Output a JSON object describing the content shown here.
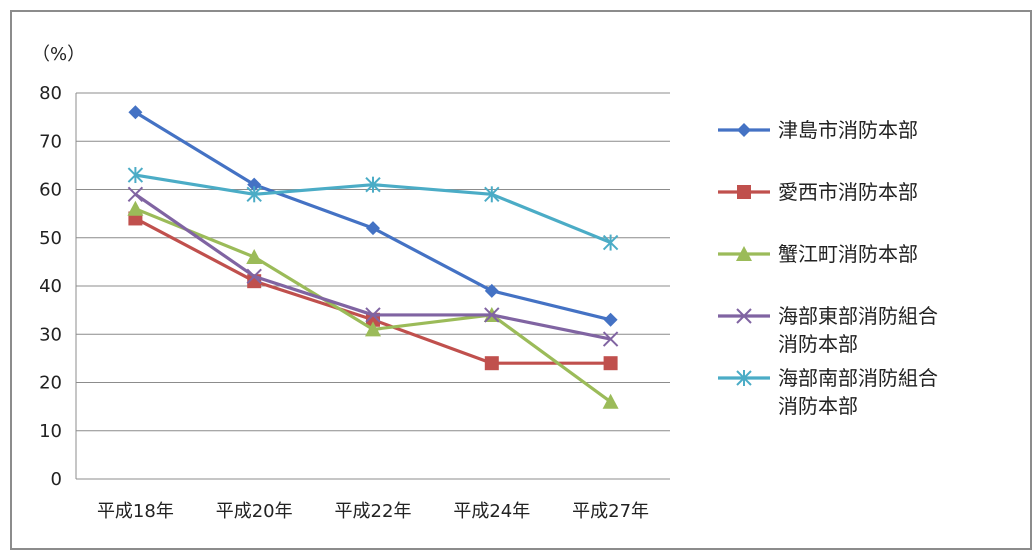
{
  "chart_data": {
    "type": "line",
    "title": "",
    "xlabel": "",
    "ylabel": "",
    "unit_label": "（%）",
    "categories": [
      "平成18年",
      "平成20年",
      "平成22年",
      "平成24年",
      "平成27年"
    ],
    "ylim": [
      0,
      80
    ],
    "yticks": [
      0,
      10,
      20,
      30,
      40,
      50,
      60,
      70,
      80
    ],
    "grid": true,
    "legend_position": "right",
    "series": [
      {
        "name_lines": [
          "津島市消防本部"
        ],
        "values": [
          76,
          61,
          52,
          39,
          33
        ],
        "color": "#4472C4",
        "marker": "diamond"
      },
      {
        "name_lines": [
          "愛西市消防本部"
        ],
        "values": [
          54,
          41,
          33,
          24,
          24
        ],
        "color": "#C0504D",
        "marker": "square"
      },
      {
        "name_lines": [
          "蟹江町消防本部"
        ],
        "values": [
          56,
          46,
          31,
          34,
          16
        ],
        "color": "#9BBB59",
        "marker": "triangle"
      },
      {
        "name_lines": [
          "海部東部消防組合",
          "消防本部"
        ],
        "values": [
          59,
          42,
          34,
          34,
          29
        ],
        "color": "#8064A2",
        "marker": "x"
      },
      {
        "name_lines": [
          "海部南部消防組合",
          "消防本部"
        ],
        "values": [
          63,
          59,
          61,
          59,
          49
        ],
        "color": "#4BACC6",
        "marker": "star"
      }
    ]
  }
}
